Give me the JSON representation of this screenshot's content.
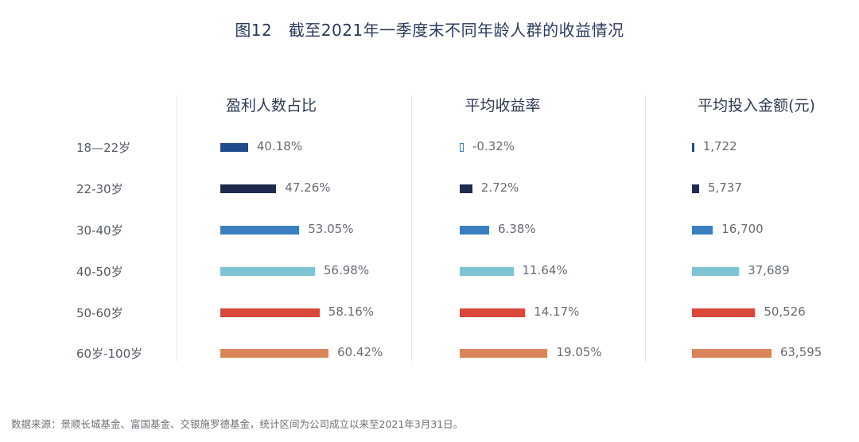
{
  "figure_title": "图12　截至2021年一季度末不同年龄人群的收益情况",
  "source_note": "数据来源：景顺长城基金、富国基金、交银施罗德基金，统计区间为公司成立以来至2021年3月31日。",
  "chart_data": {
    "type": "bar",
    "categories": [
      "18—22岁",
      "22-30岁",
      "30-40岁",
      "40-50岁",
      "50-60岁",
      "60岁-100岁"
    ],
    "row_colors": [
      "#1f4b8e",
      "#1e2a4f",
      "#3a7ebf",
      "#7dc3d4",
      "#d9463a",
      "#d9855a"
    ],
    "panels": [
      {
        "title": "盈利人数占比",
        "values": [
          40.18,
          47.26,
          53.05,
          56.98,
          58.16,
          60.42
        ],
        "labels": [
          "40.18%",
          "47.26%",
          "53.05%",
          "56.98%",
          "58.16%",
          "60.42%"
        ]
      },
      {
        "title": "平均收益率",
        "values": [
          -0.32,
          2.72,
          6.38,
          11.64,
          14.17,
          19.05
        ],
        "labels": [
          "-0.32%",
          "2.72%",
          "6.38%",
          "11.64%",
          "14.17%",
          "19.05%"
        ]
      },
      {
        "title": "平均投入金额(元)",
        "values": [
          1722,
          5737,
          16700,
          37689,
          50526,
          63595
        ],
        "labels": [
          "1,722",
          "5,737",
          "16,700",
          "37,689",
          "50,526",
          "63,595"
        ]
      }
    ]
  }
}
